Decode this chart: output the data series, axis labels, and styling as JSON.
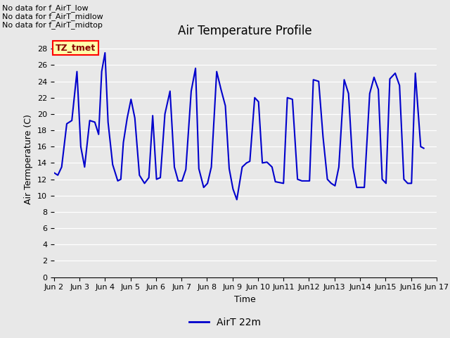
{
  "title": "Air Temperature Profile",
  "xlabel": "Time",
  "ylabel": "Air Termperature (C)",
  "legend_label": "AirT 22m",
  "line_color": "#0000cc",
  "fig_facecolor": "#e8e8e8",
  "ax_facecolor": "#e8e8e8",
  "ylim": [
    0,
    29
  ],
  "yticks": [
    0,
    2,
    4,
    6,
    8,
    10,
    12,
    14,
    16,
    18,
    20,
    22,
    24,
    26,
    28
  ],
  "annotations": [
    "No data for f_AirT_low",
    "No data for f_AirT_midlow",
    "No data for f_AirT_midtop"
  ],
  "tz_tmet_label": "TZ_tmet",
  "x_values": [
    2.0,
    2.15,
    2.3,
    2.5,
    2.7,
    2.9,
    3.05,
    3.2,
    3.4,
    3.6,
    3.75,
    3.87,
    4.0,
    4.12,
    4.3,
    4.5,
    4.62,
    4.72,
    4.87,
    5.02,
    5.17,
    5.35,
    5.55,
    5.72,
    5.87,
    6.02,
    6.17,
    6.35,
    6.55,
    6.72,
    6.87,
    7.02,
    7.17,
    7.38,
    7.55,
    7.68,
    7.87,
    8.02,
    8.17,
    8.38,
    8.55,
    8.72,
    8.87,
    9.02,
    9.17,
    9.38,
    9.55,
    9.68,
    9.87,
    10.02,
    10.17,
    10.35,
    10.55,
    10.68,
    11.0,
    11.15,
    11.35,
    11.55,
    11.72,
    12.02,
    12.17,
    12.38,
    12.55,
    12.72,
    12.87,
    13.02,
    13.17,
    13.38,
    13.55,
    13.72,
    13.87,
    14.02,
    14.17,
    14.38,
    14.55,
    14.72,
    14.87,
    15.02,
    15.17,
    15.38,
    15.55,
    15.72,
    15.87,
    16.02,
    16.17,
    16.38,
    16.5
  ],
  "y_values": [
    12.8,
    12.5,
    13.5,
    18.8,
    19.2,
    25.2,
    16.0,
    13.5,
    19.2,
    19.0,
    17.5,
    25.2,
    27.5,
    19.0,
    13.8,
    11.8,
    12.0,
    16.5,
    19.5,
    21.8,
    19.5,
    12.5,
    11.5,
    12.2,
    19.8,
    12.0,
    12.2,
    20.0,
    22.8,
    13.5,
    11.8,
    11.8,
    13.2,
    22.8,
    25.6,
    13.3,
    11.0,
    11.5,
    13.5,
    25.2,
    23.0,
    21.0,
    13.3,
    10.8,
    9.5,
    13.5,
    14.0,
    14.2,
    22.0,
    21.5,
    14.0,
    14.1,
    13.5,
    11.7,
    11.5,
    22.0,
    21.8,
    12.0,
    11.8,
    11.8,
    24.2,
    24.0,
    17.2,
    12.0,
    11.5,
    11.2,
    13.5,
    24.2,
    22.5,
    13.5,
    11.0,
    11.0,
    11.0,
    22.5,
    24.5,
    23.0,
    12.0,
    11.5,
    24.3,
    25.0,
    23.5,
    12.0,
    11.5,
    11.5,
    25.0,
    16.0,
    15.8
  ],
  "xtick_labels": [
    "Jun 2",
    "Jun 3",
    "Jun 4",
    "Jun 5",
    "Jun 6",
    "Jun 7",
    "Jun 8",
    "Jun 9",
    "Jun 10",
    "Jun11",
    "Jun12",
    "Jun13",
    "Jun14",
    "Jun15",
    "Jun16",
    "Jun 17"
  ],
  "xtick_positions": [
    2,
    3,
    4,
    5,
    6,
    7,
    8,
    9,
    10,
    11,
    12,
    13,
    14,
    15,
    16,
    17
  ]
}
